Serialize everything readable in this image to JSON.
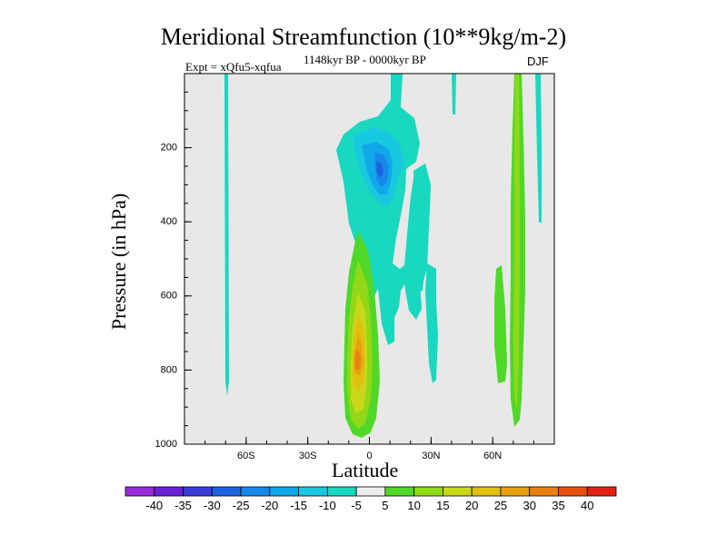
{
  "chart_data": {
    "type": "heatmap",
    "title": "Meridional Streamfunction (10**9kg/m-2)",
    "subtitle_left": "Expt = xQfu5-xqfua",
    "subtitle_center": "1148kyr BP - 0000kyr BP",
    "subtitle_right": "DJF",
    "xlabel": "Latitude",
    "ylabel": "Pressure (in hPa)",
    "xlim": [
      -90,
      90
    ],
    "ylim": [
      1000,
      0
    ],
    "x_ticks": [
      {
        "value": -60,
        "label": "60S"
      },
      {
        "value": -30,
        "label": "30S"
      },
      {
        "value": 0,
        "label": "0"
      },
      {
        "value": 30,
        "label": "30N"
      },
      {
        "value": 60,
        "label": "60N"
      }
    ],
    "y_ticks": [
      {
        "value": 200,
        "label": "200"
      },
      {
        "value": 400,
        "label": "400"
      },
      {
        "value": 600,
        "label": "600"
      },
      {
        "value": 800,
        "label": "800"
      },
      {
        "value": 1000,
        "label": "1000"
      }
    ],
    "background_color": "#e8e8e8",
    "colorbar": {
      "levels": [
        -40,
        -35,
        -30,
        -25,
        -20,
        -15,
        -10,
        -5,
        5,
        10,
        15,
        20,
        25,
        30,
        35,
        40
      ],
      "labels": [
        "-40",
        "-35",
        "-30",
        "-25",
        "-20",
        "-15",
        "-10",
        "-5",
        "5",
        "10",
        "15",
        "20",
        "25",
        "30",
        "35",
        "40"
      ],
      "colors": [
        "#9a2bd8",
        "#6a22d4",
        "#3a3dd8",
        "#1c62e0",
        "#1888e8",
        "#10a8e8",
        "#18c8e0",
        "#18d8c0",
        "#ececec",
        "#50d828",
        "#90d818",
        "#c8d818",
        "#e0c010",
        "#e8a010",
        "#e88010",
        "#e85010",
        "#e02010"
      ]
    },
    "series": [
      {
        "name": "tropical-positive-cell",
        "sign": "positive",
        "peak_value": 30,
        "lat_range": [
          -12,
          4
        ],
        "pressure_range": [
          470,
          980
        ],
        "peak_at": {
          "lat": -4,
          "pressure": 780
        }
      },
      {
        "name": "upper-negative-cell",
        "sign": "negative",
        "peak_value": -25,
        "lat_range": [
          -6,
          18
        ],
        "pressure_range": [
          0,
          700
        ],
        "peak_at": {
          "lat": 3,
          "pressure": 240
        }
      },
      {
        "name": "high-lat-positive-columns",
        "sign": "positive",
        "peak_value": 10,
        "lat_range": [
          57,
          80
        ],
        "pressure_range": [
          0,
          970
        ]
      },
      {
        "name": "south-polar-negative-strip",
        "sign": "negative",
        "peak_value": -5,
        "lat_range": [
          -71,
          -69
        ],
        "pressure_range": [
          0,
          870
        ]
      }
    ]
  }
}
